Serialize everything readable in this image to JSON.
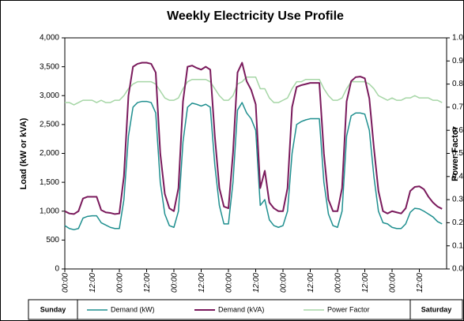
{
  "chart_data": {
    "type": "line",
    "title": "Weekly Electricity Use Profile",
    "y_label": "Load (kW or kVA)",
    "y2_label": "Power Factor",
    "x_period_labels": [
      "Sunday",
      "Saturday"
    ],
    "categories": [
      "00:00",
      null,
      null,
      null,
      null,
      null,
      "12:00",
      null,
      null,
      null,
      null,
      null,
      "00:00",
      null,
      null,
      null,
      null,
      null,
      "12:00",
      null,
      null,
      null,
      null,
      null,
      "00:00",
      null,
      null,
      null,
      null,
      null,
      "12:00",
      null,
      null,
      null,
      null,
      null,
      "00:00",
      null,
      null,
      null,
      null,
      null,
      "12:00",
      null,
      null,
      null,
      null,
      null,
      "00:00",
      null,
      null,
      null,
      null,
      null,
      "12:00",
      null,
      null,
      null,
      null,
      null,
      "00:00",
      null,
      null,
      null,
      null,
      null,
      "12:00",
      null,
      null,
      null,
      null,
      null,
      "00:00",
      null,
      null,
      null,
      null,
      null,
      "12:00",
      null,
      null,
      null,
      null,
      null
    ],
    "series": [
      {
        "name": "Demand (kW)",
        "color": "#1f8f8f",
        "axis": "y",
        "values": [
          750,
          700,
          680,
          700,
          880,
          910,
          920,
          920,
          800,
          760,
          720,
          700,
          700,
          1200,
          2300,
          2800,
          2880,
          2900,
          2900,
          2880,
          2700,
          1500,
          950,
          750,
          720,
          1000,
          2200,
          2800,
          2870,
          2850,
          2820,
          2850,
          2800,
          1800,
          1100,
          780,
          780,
          1500,
          2750,
          2880,
          2700,
          2600,
          2400,
          1100,
          1200,
          850,
          750,
          720,
          750,
          1000,
          2000,
          2500,
          2550,
          2580,
          2600,
          2600,
          2600,
          1500,
          950,
          750,
          720,
          1000,
          2300,
          2650,
          2700,
          2700,
          2680,
          2400,
          1600,
          1000,
          800,
          780,
          720,
          700,
          700,
          780,
          980,
          1050,
          1040,
          1000,
          950,
          900,
          820,
          780
        ]
      },
      {
        "name": "Demand (kVA)",
        "color": "#7a1a5c",
        "axis": "y",
        "values": [
          1000,
          960,
          950,
          1000,
          1220,
          1250,
          1250,
          1250,
          1020,
          980,
          970,
          950,
          960,
          1600,
          3000,
          3500,
          3550,
          3570,
          3570,
          3550,
          3400,
          2000,
          1300,
          1050,
          1000,
          1400,
          2900,
          3500,
          3520,
          3480,
          3450,
          3500,
          3450,
          2300,
          1400,
          1080,
          1050,
          2000,
          3400,
          3570,
          3250,
          3100,
          2850,
          1400,
          1700,
          1150,
          1050,
          1000,
          1000,
          1400,
          2800,
          3150,
          3180,
          3200,
          3220,
          3220,
          3220,
          2000,
          1200,
          1000,
          1000,
          1400,
          2900,
          3250,
          3320,
          3330,
          3300,
          2950,
          2100,
          1350,
          1000,
          960,
          1000,
          980,
          960,
          1050,
          1350,
          1420,
          1430,
          1380,
          1250,
          1150,
          1080,
          1040
        ]
      },
      {
        "name": "Power Factor",
        "color": "#a6d6a6",
        "axis": "y2",
        "values": [
          0.72,
          0.72,
          0.71,
          0.72,
          0.73,
          0.73,
          0.73,
          0.72,
          0.73,
          0.72,
          0.72,
          0.73,
          0.73,
          0.75,
          0.78,
          0.8,
          0.81,
          0.81,
          0.81,
          0.81,
          0.8,
          0.77,
          0.74,
          0.73,
          0.73,
          0.74,
          0.78,
          0.81,
          0.82,
          0.82,
          0.82,
          0.82,
          0.81,
          0.78,
          0.75,
          0.73,
          0.73,
          0.75,
          0.8,
          0.81,
          0.83,
          0.83,
          0.83,
          0.78,
          0.78,
          0.74,
          0.72,
          0.72,
          0.73,
          0.74,
          0.78,
          0.81,
          0.81,
          0.82,
          0.82,
          0.82,
          0.82,
          0.78,
          0.75,
          0.73,
          0.73,
          0.74,
          0.78,
          0.81,
          0.81,
          0.81,
          0.81,
          0.8,
          0.78,
          0.75,
          0.74,
          0.73,
          0.74,
          0.73,
          0.73,
          0.74,
          0.74,
          0.75,
          0.74,
          0.74,
          0.74,
          0.73,
          0.73,
          0.72
        ]
      }
    ],
    "ylim": [
      0,
      4000
    ],
    "yticks": [
      0,
      500,
      {
        "value": 1000,
        "label": "1,000"
      },
      {
        "value": 1500,
        "label": "1,500"
      },
      {
        "value": 2000,
        "label": "2,000"
      },
      {
        "value": 2500,
        "label": "2,500"
      },
      {
        "value": 3000,
        "label": "3,000"
      },
      {
        "value": 3500,
        "label": "3,500"
      },
      {
        "value": 4000,
        "label": "4,000"
      }
    ],
    "y2lim": [
      0,
      1
    ],
    "y2ticks": [
      {
        "value": 0,
        "label": "0.0"
      },
      0.1,
      0.2,
      0.3,
      0.4,
      0.5,
      0.6,
      0.7,
      0.8,
      0.9,
      {
        "value": 1,
        "label": "1.0"
      }
    ],
    "grid": false,
    "legend": "bottom"
  }
}
